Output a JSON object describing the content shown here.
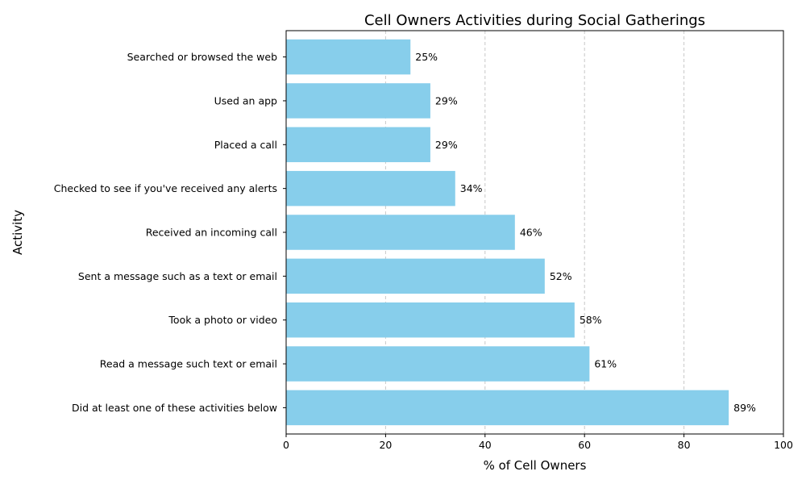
{
  "chart_data": {
    "type": "bar",
    "orientation": "horizontal",
    "title": "Cell Owners Activities during Social Gatherings",
    "xlabel": "% of Cell Owners",
    "ylabel": "Activity",
    "xlim": [
      0,
      100
    ],
    "xticks": [
      "0",
      "20",
      "40",
      "60",
      "80",
      "100"
    ],
    "grid": "x-dashed",
    "bar_color": "#87ceeb",
    "categories": [
      "Searched or browsed the web",
      "Used an app",
      "Placed a call",
      "Checked to see if you've received any alerts",
      "Received an incoming call",
      "Sent a message such as a text or email",
      "Took a photo or video",
      "Read a message such text or email",
      "Did at least one of these activities below"
    ],
    "values": [
      25,
      29,
      29,
      34,
      46,
      52,
      58,
      61,
      89
    ],
    "data_labels": [
      "25%",
      "29%",
      "29%",
      "34%",
      "46%",
      "52%",
      "58%",
      "61%",
      "89%"
    ]
  }
}
